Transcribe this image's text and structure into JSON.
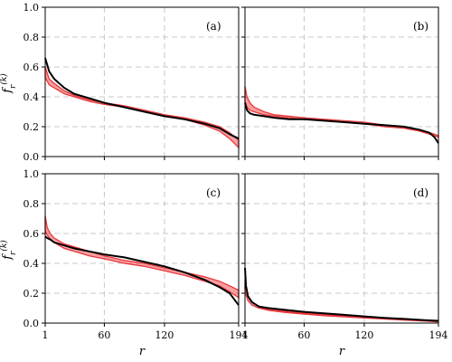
{
  "chart_data": [
    {
      "type": "line",
      "panel_label": "(a)",
      "xlabel": "",
      "ylabel": "f̄_r^(k)",
      "xlim": [
        1,
        194
      ],
      "ylim": [
        0,
        1.0
      ],
      "xticks": [
        1,
        60,
        120,
        194
      ],
      "yticks": [
        0.0,
        0.2,
        0.4,
        0.6,
        0.8,
        1.0
      ],
      "ytick_labels": [
        "0.0",
        "0.2",
        "0.4",
        "0.6",
        "0.8",
        "1.0"
      ],
      "grid": true,
      "x": [
        1,
        5,
        10,
        20,
        30,
        45,
        60,
        80,
        100,
        120,
        140,
        160,
        175,
        185,
        194
      ],
      "series": [
        {
          "style": "black-line",
          "values": [
            0.66,
            0.57,
            0.52,
            0.46,
            0.42,
            0.39,
            0.36,
            0.33,
            0.3,
            0.27,
            0.25,
            0.22,
            0.19,
            0.15,
            0.12
          ]
        },
        {
          "style": "red-band-upper",
          "values": [
            0.6,
            0.52,
            0.49,
            0.44,
            0.41,
            0.38,
            0.36,
            0.34,
            0.31,
            0.28,
            0.26,
            0.23,
            0.2,
            0.16,
            0.11
          ]
        },
        {
          "style": "red-band-lower",
          "values": [
            0.53,
            0.48,
            0.46,
            0.42,
            0.4,
            0.37,
            0.35,
            0.33,
            0.3,
            0.28,
            0.25,
            0.21,
            0.17,
            0.12,
            0.06
          ]
        }
      ]
    },
    {
      "type": "line",
      "panel_label": "(b)",
      "xlabel": "",
      "ylabel": "",
      "xlim": [
        1,
        194
      ],
      "ylim": [
        0,
        1.0
      ],
      "xticks": [
        1,
        60,
        120,
        194
      ],
      "yticks": [
        0.0,
        0.2,
        0.4,
        0.6,
        0.8,
        1.0
      ],
      "grid": true,
      "x": [
        1,
        3,
        6,
        10,
        20,
        30,
        45,
        60,
        80,
        100,
        120,
        140,
        160,
        175,
        185,
        190,
        194
      ],
      "series": [
        {
          "style": "black-line",
          "values": [
            0.36,
            0.31,
            0.29,
            0.28,
            0.27,
            0.26,
            0.25,
            0.25,
            0.24,
            0.23,
            0.22,
            0.21,
            0.2,
            0.18,
            0.16,
            0.13,
            0.09
          ]
        },
        {
          "style": "red-band-upper",
          "values": [
            0.47,
            0.4,
            0.36,
            0.33,
            0.3,
            0.28,
            0.27,
            0.26,
            0.25,
            0.24,
            0.23,
            0.21,
            0.2,
            0.18,
            0.16,
            0.15,
            0.14
          ]
        },
        {
          "style": "red-band-lower",
          "values": [
            0.37,
            0.33,
            0.31,
            0.3,
            0.28,
            0.27,
            0.26,
            0.25,
            0.24,
            0.23,
            0.22,
            0.2,
            0.19,
            0.17,
            0.15,
            0.14,
            0.13
          ]
        }
      ]
    },
    {
      "type": "line",
      "panel_label": "(c)",
      "xlabel": "r",
      "ylabel": "f̄_r^(k)",
      "xlim": [
        1,
        194
      ],
      "ylim": [
        0,
        1.0
      ],
      "xticks": [
        1,
        60,
        120,
        194
      ],
      "xtick_labels": [
        "1",
        "60",
        "120",
        "194"
      ],
      "yticks": [
        0.0,
        0.2,
        0.4,
        0.6,
        0.8,
        1.0
      ],
      "ytick_labels": [
        "0.0",
        "0.2",
        "0.4",
        "0.6",
        "0.8",
        "1.0"
      ],
      "grid": true,
      "x": [
        1,
        3,
        6,
        10,
        20,
        30,
        45,
        60,
        80,
        100,
        120,
        140,
        160,
        175,
        185,
        194
      ],
      "series": [
        {
          "style": "black-line",
          "values": [
            0.58,
            0.57,
            0.56,
            0.54,
            0.52,
            0.5,
            0.48,
            0.46,
            0.44,
            0.41,
            0.38,
            0.34,
            0.29,
            0.24,
            0.2,
            0.12
          ]
        },
        {
          "style": "red-band-upper",
          "values": [
            0.72,
            0.64,
            0.6,
            0.57,
            0.53,
            0.51,
            0.48,
            0.45,
            0.42,
            0.4,
            0.37,
            0.34,
            0.31,
            0.28,
            0.25,
            0.22
          ]
        },
        {
          "style": "red-band-lower",
          "values": [
            0.62,
            0.59,
            0.56,
            0.54,
            0.5,
            0.48,
            0.45,
            0.43,
            0.4,
            0.38,
            0.35,
            0.32,
            0.28,
            0.25,
            0.21,
            0.17
          ]
        }
      ]
    },
    {
      "type": "line",
      "panel_label": "(d)",
      "xlabel": "r",
      "ylabel": "",
      "xlim": [
        1,
        194
      ],
      "ylim": [
        0,
        1.0
      ],
      "xticks": [
        1,
        60,
        120,
        194
      ],
      "xtick_labels": [
        "1",
        "60",
        "120",
        "194"
      ],
      "yticks": [
        0.0,
        0.2,
        0.4,
        0.6,
        0.8,
        1.0
      ],
      "grid": true,
      "x": [
        1,
        2,
        4,
        8,
        15,
        25,
        40,
        60,
        80,
        100,
        120,
        140,
        160,
        180,
        194
      ],
      "series": [
        {
          "style": "black-line",
          "values": [
            0.37,
            0.25,
            0.18,
            0.14,
            0.11,
            0.1,
            0.09,
            0.075,
            0.065,
            0.055,
            0.045,
            0.035,
            0.028,
            0.02,
            0.015
          ]
        },
        {
          "style": "red-band-upper",
          "values": [
            0.29,
            0.24,
            0.18,
            0.14,
            0.11,
            0.09,
            0.08,
            0.068,
            0.058,
            0.048,
            0.04,
            0.032,
            0.025,
            0.018,
            0.012
          ]
        },
        {
          "style": "red-band-lower",
          "values": [
            0.22,
            0.19,
            0.15,
            0.12,
            0.1,
            0.085,
            0.072,
            0.06,
            0.05,
            0.042,
            0.034,
            0.027,
            0.02,
            0.014,
            0.008
          ]
        }
      ]
    }
  ]
}
